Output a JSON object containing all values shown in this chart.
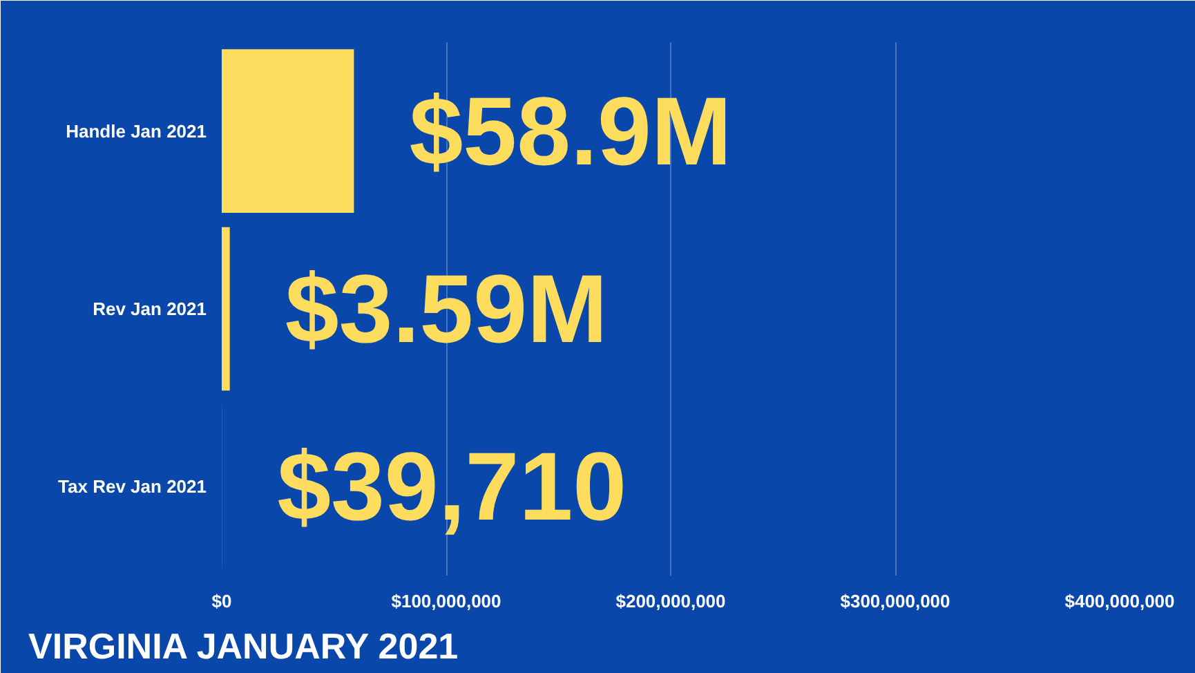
{
  "chart_data": {
    "type": "bar",
    "orientation": "horizontal",
    "title": "VIRGINIA JANUARY 2021",
    "categories": [
      "Handle Jan 2021",
      "Rev Jan 2021",
      "Tax Rev Jan 2021"
    ],
    "values": [
      58900000,
      3590000,
      39710
    ],
    "value_labels": [
      "$58.9M",
      "$3.59M",
      "$39,710"
    ],
    "color": "#fedd5e",
    "xlim": [
      0,
      400000000
    ],
    "xticks": [
      {
        "value": 0,
        "label": "$0"
      },
      {
        "value": 100000000,
        "label": "$100,000,000"
      },
      {
        "value": 200000000,
        "label": "$200,000,000"
      },
      {
        "value": 300000000,
        "label": "$300,000,000"
      },
      {
        "value": 400000000,
        "label": "$400,000,000"
      }
    ],
    "grid": "x"
  }
}
